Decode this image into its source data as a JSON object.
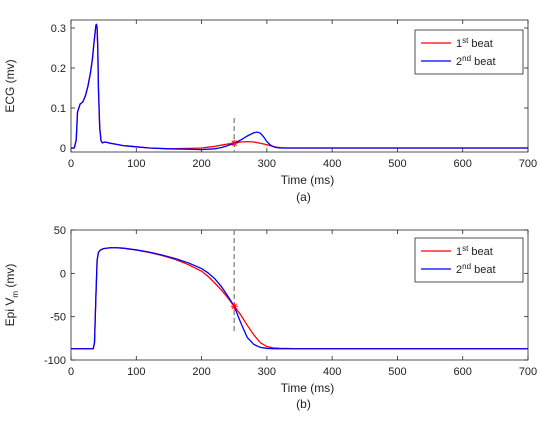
{
  "chart_data": [
    {
      "type": "line",
      "panel": "(a)",
      "xlabel": "Time (ms)",
      "ylabel": "ECG (mv)",
      "xlim": [
        0,
        700
      ],
      "ylim": [
        -0.01,
        0.32
      ],
      "xticks": [
        0,
        100,
        200,
        300,
        400,
        500,
        600,
        700
      ],
      "yticks": [
        0,
        0.1,
        0.2,
        0.3
      ],
      "ytick_labels": [
        "0",
        "0.1",
        "0.2",
        "0.3"
      ],
      "grid": false,
      "legend": "top-right",
      "vline_x": 250,
      "marker": {
        "x": 250,
        "y": 0.012
      },
      "series": [
        {
          "name": "1st beat",
          "legend_base": "1",
          "legend_sup": "st",
          "legend_tail": " beat",
          "color": "#ff0000",
          "x": [
            0,
            5,
            8,
            10,
            14,
            18,
            22,
            26,
            30,
            33,
            35,
            37,
            38,
            39,
            40,
            41,
            42,
            44,
            46,
            48,
            50,
            52,
            55,
            60,
            70,
            80,
            100,
            120,
            150,
            180,
            200,
            210,
            220,
            230,
            240,
            250,
            260,
            270,
            280,
            290,
            300,
            305,
            310,
            315,
            320,
            330,
            350,
            400,
            500,
            600,
            700
          ],
          "y": [
            0,
            0,
            0.02,
            0.09,
            0.11,
            0.115,
            0.13,
            0.155,
            0.19,
            0.225,
            0.26,
            0.29,
            0.305,
            0.31,
            0.3,
            0.25,
            0.15,
            0.05,
            0.018,
            0.013,
            0.014,
            0.015,
            0.014,
            0.012,
            0.009,
            0.006,
            0.003,
            0.0,
            -0.002,
            -0.001,
            0.0,
            0.002,
            0.004,
            0.007,
            0.01,
            0.012,
            0.015,
            0.016,
            0.015,
            0.012,
            0.008,
            0.006,
            0.004,
            0.002,
            0.001,
            0.0,
            0.0,
            0.0,
            0.0,
            0.0,
            0.0
          ]
        },
        {
          "name": "2nd beat",
          "legend_base": "2",
          "legend_sup": "nd",
          "legend_tail": " beat",
          "color": "#0000ff",
          "x": [
            0,
            5,
            8,
            10,
            14,
            18,
            22,
            26,
            30,
            33,
            35,
            37,
            38,
            39,
            40,
            41,
            42,
            44,
            46,
            48,
            50,
            52,
            55,
            60,
            70,
            80,
            100,
            120,
            150,
            180,
            200,
            210,
            220,
            230,
            240,
            250,
            260,
            270,
            280,
            285,
            290,
            295,
            300,
            305,
            310,
            315,
            320,
            330,
            350,
            400,
            500,
            600,
            700
          ],
          "y": [
            0,
            0,
            0.02,
            0.09,
            0.11,
            0.115,
            0.13,
            0.155,
            0.19,
            0.225,
            0.26,
            0.29,
            0.305,
            0.31,
            0.3,
            0.25,
            0.15,
            0.05,
            0.018,
            0.013,
            0.014,
            0.015,
            0.014,
            0.012,
            0.009,
            0.006,
            0.003,
            0.0,
            -0.002,
            -0.003,
            -0.004,
            -0.003,
            -0.002,
            0.001,
            0.006,
            0.012,
            0.02,
            0.03,
            0.038,
            0.04,
            0.037,
            0.028,
            0.016,
            0.008,
            0.003,
            0.001,
            0.0,
            0.0,
            0.0,
            0.0,
            0.0,
            0.0,
            0.0
          ]
        }
      ]
    },
    {
      "type": "line",
      "panel": "(b)",
      "xlabel": "Time (ms)",
      "ylabel_base": "Epi V",
      "ylabel_sub": "m",
      "ylabel_tail": " (mv)",
      "xlim": [
        0,
        700
      ],
      "ylim": [
        -100,
        50
      ],
      "xticks": [
        0,
        100,
        200,
        300,
        400,
        500,
        600,
        700
      ],
      "yticks": [
        -100,
        -50,
        0,
        50
      ],
      "ytick_labels": [
        "-100",
        "-50",
        "0",
        "50"
      ],
      "grid": false,
      "legend": "top-right",
      "vline_x": 250,
      "marker": {
        "x": 250,
        "y": -38
      },
      "series": [
        {
          "name": "1st beat",
          "legend_base": "1",
          "legend_sup": "st",
          "legend_tail": " beat",
          "color": "#ff0000",
          "x": [
            0,
            34,
            36,
            38,
            40,
            42,
            45,
            50,
            60,
            70,
            80,
            100,
            120,
            140,
            160,
            180,
            200,
            210,
            220,
            230,
            240,
            250,
            260,
            270,
            280,
            290,
            300,
            310,
            320,
            350,
            400,
            500,
            600,
            700
          ],
          "y": [
            -87,
            -87,
            -80,
            -30,
            15,
            24,
            27,
            28.5,
            29.5,
            29.5,
            29,
            27,
            24,
            20.5,
            16,
            10,
            2.5,
            -3.5,
            -11,
            -19,
            -28,
            -38,
            -48,
            -60,
            -71,
            -80,
            -84.5,
            -86,
            -86.5,
            -87,
            -87,
            -87,
            -87,
            -87
          ]
        },
        {
          "name": "2nd beat",
          "legend_base": "2",
          "legend_sup": "nd",
          "legend_tail": " beat",
          "color": "#0000ff",
          "x": [
            0,
            34,
            36,
            38,
            40,
            42,
            45,
            50,
            60,
            70,
            80,
            100,
            120,
            140,
            160,
            180,
            200,
            210,
            220,
            230,
            240,
            250,
            260,
            270,
            280,
            290,
            300,
            310,
            320,
            350,
            400,
            500,
            600,
            700
          ],
          "y": [
            -87,
            -87,
            -80,
            -30,
            15,
            24,
            27,
            28.5,
            29.5,
            29.5,
            29,
            27,
            24.5,
            21,
            17,
            12,
            5.5,
            0.5,
            -6,
            -15,
            -26,
            -38,
            -57,
            -74,
            -82,
            -85.5,
            -86.5,
            -87,
            -87,
            -87,
            -87,
            -87,
            -87,
            -87
          ]
        }
      ]
    }
  ]
}
